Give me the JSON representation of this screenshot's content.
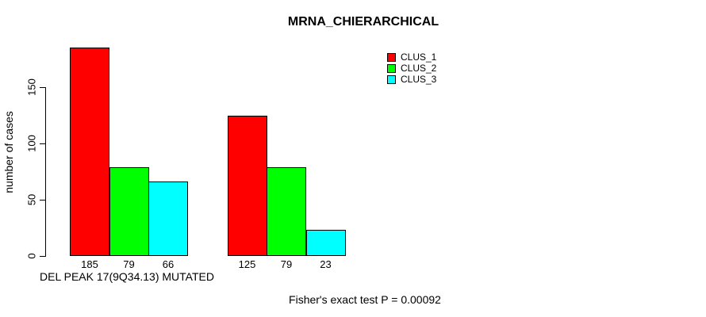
{
  "title": "MRNA_CHIERARCHICAL",
  "ylabel": "number of cases",
  "group_label": "DEL PEAK 17(9Q34.13) MUTATED",
  "footer": "Fisher's exact test P = 0.00092",
  "legend": {
    "items": [
      {
        "label": "CLUS_1",
        "color": "#ff0000"
      },
      {
        "label": "CLUS_2",
        "color": "#00ff00"
      },
      {
        "label": "CLUS_3",
        "color": "#00ffff"
      }
    ]
  },
  "chart_data": {
    "type": "bar",
    "title": "MRNA_CHIERARCHICAL",
    "xlabel": "",
    "ylabel": "number of cases",
    "ylim": [
      0,
      150
    ],
    "yticks": [
      0,
      50,
      100,
      150
    ],
    "grid": false,
    "legend_position": "top-right",
    "categories": [
      "DEL PEAK 17(9Q34.13) MUTATED",
      ""
    ],
    "series": [
      {
        "name": "CLUS_1",
        "color": "#ff0000",
        "values": [
          185,
          125
        ]
      },
      {
        "name": "CLUS_2",
        "color": "#00ff00",
        "values": [
          79,
          79
        ]
      },
      {
        "name": "CLUS_3",
        "color": "#00ffff",
        "values": [
          66,
          23
        ]
      }
    ],
    "bar_value_labels": [
      [
        185,
        79,
        66
      ],
      [
        125,
        79,
        23
      ]
    ],
    "annotation": "Fisher's exact test P = 0.00092"
  }
}
